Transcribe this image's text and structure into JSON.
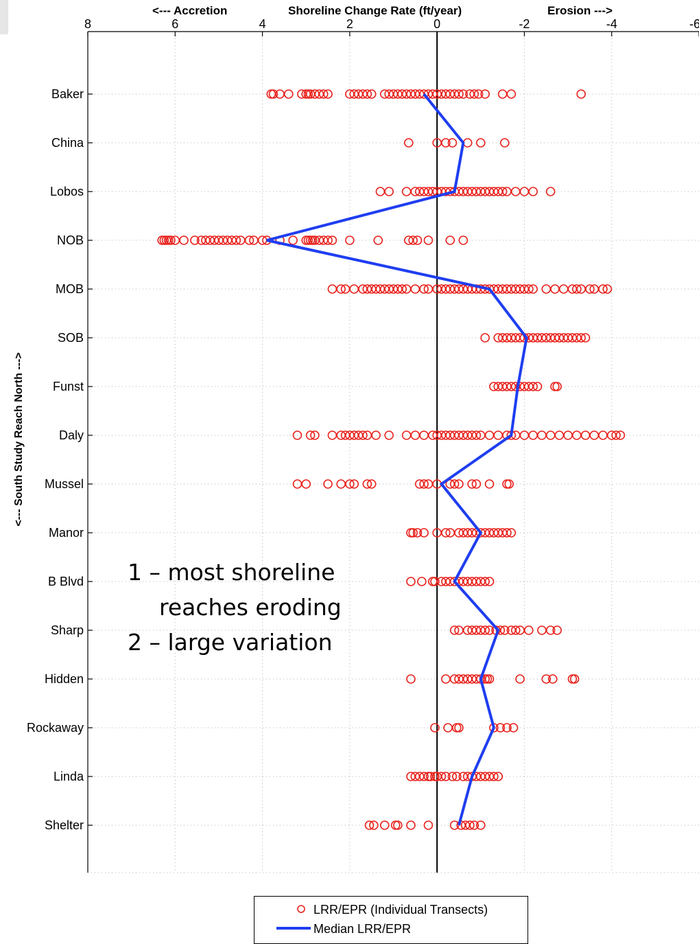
{
  "header": {
    "left": "<--- Accretion",
    "center": "Shoreline Change Rate (ft/year)",
    "right": "Erosion --->"
  },
  "ylabel": "<--- South    Study Reach    North --->",
  "annotation": {
    "line1": "1 – most shoreline",
    "line2": "reaches eroding",
    "line3": "2 – large variation"
  },
  "legend": {
    "points": "LRR/EPR (Individual Transects)",
    "median": "Median LRR/EPR"
  },
  "colors": {
    "points": "#e8231e",
    "median": "#1f3ef0",
    "axis": "#000000",
    "grid": "#b0b0b0"
  },
  "chart_data": {
    "type": "scatter",
    "title": "Shoreline Change Rate (ft/year)",
    "xlim": [
      8,
      -6
    ],
    "x_ticks": [
      8,
      6,
      4,
      2,
      0,
      -2,
      -4,
      -6
    ],
    "x_tick_labels": [
      "8",
      "6",
      "4",
      "2",
      "0",
      "-2",
      "-4",
      "-6"
    ],
    "x_direction": "reversed (positive = accretion on left, negative = erosion on right)",
    "categories": [
      "Baker",
      "China",
      "Lobos",
      "NOB",
      "MOB",
      "SOB",
      "Funst",
      "Daly",
      "Mussel",
      "Manor",
      "B Blvd",
      "Sharp",
      "Hidden",
      "Rockaway",
      "Linda",
      "Shelter"
    ],
    "grid": true,
    "zero_line": true,
    "series": [
      {
        "name": "LRR/EPR (Individual Transects)",
        "marker": "open-circle",
        "points": {
          "Baker": [
            3.8,
            3.75,
            3.6,
            3.4,
            3.1,
            3.0,
            2.95,
            2.9,
            2.8,
            2.7,
            2.6,
            2.5,
            2.0,
            1.9,
            1.8,
            1.7,
            1.6,
            1.5,
            1.2,
            1.1,
            1.0,
            0.9,
            0.8,
            0.7,
            0.6,
            0.5,
            0.4,
            0.3,
            0.2,
            0.1,
            0.0,
            -0.1,
            -0.2,
            -0.3,
            -0.4,
            -0.5,
            -0.6,
            -0.75,
            -0.85,
            -0.95,
            -1.1,
            -1.5,
            -1.7,
            -3.3
          ],
          "China": [
            0.65,
            0.0,
            -0.2,
            -0.35,
            -0.7,
            -1.0,
            -1.55
          ],
          "Lobos": [
            1.3,
            1.1,
            0.7,
            0.5,
            0.4,
            0.3,
            0.2,
            0.1,
            0.0,
            -0.1,
            -0.2,
            -0.3,
            -0.4,
            -0.5,
            -0.6,
            -0.7,
            -0.8,
            -0.9,
            -1.0,
            -1.1,
            -1.2,
            -1.3,
            -1.4,
            -1.5,
            -1.6,
            -1.8,
            -2.0,
            -2.2,
            -2.6
          ],
          "NOB": [
            6.3,
            6.25,
            6.2,
            6.15,
            6.1,
            6.0,
            5.8,
            5.55,
            5.4,
            5.3,
            5.2,
            5.1,
            5.0,
            4.9,
            4.8,
            4.7,
            4.6,
            4.5,
            4.3,
            4.2,
            4.0,
            3.9,
            3.6,
            3.3,
            3.0,
            2.95,
            2.9,
            2.85,
            2.8,
            2.7,
            2.6,
            2.5,
            2.4,
            2.0,
            1.35,
            0.65,
            0.55,
            0.45,
            0.2,
            -0.3,
            -0.6
          ],
          "MOB": [
            2.4,
            2.2,
            2.1,
            1.9,
            1.7,
            1.6,
            1.5,
            1.4,
            1.3,
            1.2,
            1.1,
            1.0,
            0.9,
            0.8,
            0.7,
            0.5,
            0.3,
            0.2,
            0.0,
            -0.1,
            -0.2,
            -0.3,
            -0.4,
            -0.5,
            -0.6,
            -0.7,
            -0.8,
            -0.9,
            -1.0,
            -1.1,
            -1.2,
            -1.3,
            -1.4,
            -1.5,
            -1.6,
            -1.7,
            -1.8,
            -1.9,
            -2.0,
            -2.1,
            -2.2,
            -2.5,
            -2.7,
            -2.9,
            -3.1,
            -3.2,
            -3.3,
            -3.5,
            -3.6,
            -3.8,
            -3.9
          ],
          "SOB": [
            -1.1,
            -1.4,
            -1.5,
            -1.6,
            -1.7,
            -1.8,
            -1.9,
            -2.0,
            -2.1,
            -2.2,
            -2.3,
            -2.4,
            -2.5,
            -2.6,
            -2.7,
            -2.8,
            -2.9,
            -3.0,
            -3.1,
            -3.2,
            -3.3,
            -3.4
          ],
          "Funst": [
            -1.3,
            -1.4,
            -1.5,
            -1.6,
            -1.7,
            -1.8,
            -1.9,
            -2.0,
            -2.1,
            -2.2,
            -2.3,
            -2.7,
            -2.75
          ],
          "Daly": [
            3.2,
            2.9,
            2.8,
            2.4,
            2.2,
            2.1,
            2.0,
            1.9,
            1.8,
            1.7,
            1.6,
            1.4,
            1.1,
            0.7,
            0.5,
            0.3,
            0.1,
            0.0,
            -0.1,
            -0.2,
            -0.3,
            -0.4,
            -0.5,
            -0.6,
            -0.7,
            -0.8,
            -0.9,
            -1.0,
            -1.2,
            -1.4,
            -1.6,
            -1.7,
            -1.8,
            -2.0,
            -2.2,
            -2.4,
            -2.6,
            -2.8,
            -3.0,
            -3.2,
            -3.4,
            -3.6,
            -3.8,
            -4.0,
            -4.1,
            -4.2
          ],
          "Mussel": [
            3.2,
            3.0,
            2.5,
            2.2,
            2.0,
            1.9,
            1.6,
            1.5,
            0.4,
            0.3,
            0.2,
            0.0,
            -0.3,
            -0.4,
            -0.5,
            -0.8,
            -0.9,
            -1.2,
            -1.6,
            -1.65
          ],
          "Manor": [
            0.6,
            0.55,
            0.45,
            0.3,
            0.0,
            -0.2,
            -0.3,
            -0.5,
            -0.6,
            -0.7,
            -0.8,
            -0.9,
            -1.0,
            -1.1,
            -1.2,
            -1.3,
            -1.4,
            -1.5,
            -1.6,
            -1.7
          ],
          "B Blvd": [
            0.6,
            0.35,
            0.1,
            0.05,
            -0.1,
            -0.2,
            -0.3,
            -0.4,
            -0.5,
            -0.6,
            -0.7,
            -0.8,
            -0.9,
            -1.0,
            -1.1,
            -1.2
          ],
          "Sharp": [
            -0.4,
            -0.5,
            -0.7,
            -0.8,
            -0.9,
            -1.0,
            -1.1,
            -1.2,
            -1.35,
            -1.45,
            -1.55,
            -1.7,
            -1.8,
            -1.9,
            -2.1,
            -2.4,
            -2.6,
            -2.75
          ],
          "Hidden": [
            0.6,
            -0.2,
            -0.4,
            -0.5,
            -0.6,
            -0.7,
            -0.8,
            -0.9,
            -1.0,
            -1.1,
            -1.15,
            -1.2,
            -1.9,
            -2.5,
            -2.65,
            -3.1,
            -3.15
          ],
          "Rockaway": [
            0.05,
            -0.25,
            -0.45,
            -0.5,
            -1.3,
            -1.45,
            -1.6,
            -1.75
          ],
          "Linda": [
            0.6,
            0.5,
            0.4,
            0.3,
            0.2,
            0.15,
            0.05,
            0.0,
            -0.1,
            -0.2,
            -0.35,
            -0.45,
            -0.6,
            -0.7,
            -0.8,
            -0.9,
            -1.0,
            -1.1,
            -1.2,
            -1.3,
            -1.4
          ],
          "Shelter": [
            1.55,
            1.45,
            1.2,
            0.95,
            0.9,
            0.6,
            0.2,
            -0.4,
            -0.55,
            -0.65,
            -0.75,
            -0.85,
            -1.0
          ]
        }
      },
      {
        "name": "Median LRR/EPR",
        "type": "line",
        "values": [
          0.3,
          -0.6,
          -0.4,
          3.9,
          -1.2,
          -2.05,
          -1.85,
          -1.7,
          -0.1,
          -1.0,
          -0.4,
          -1.4,
          -1.0,
          -1.3,
          -0.8,
          -0.5
        ]
      }
    ]
  }
}
